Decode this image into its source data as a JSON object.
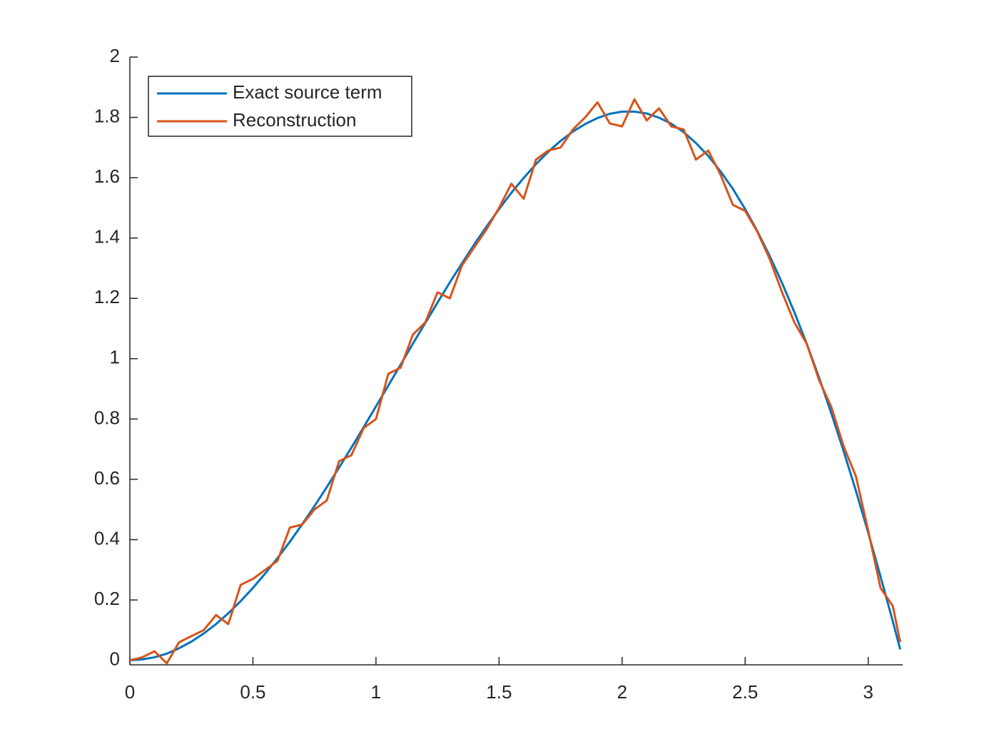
{
  "chart_data": {
    "type": "line",
    "x": [
      0,
      0.05,
      0.1,
      0.15,
      0.2,
      0.25,
      0.3,
      0.35,
      0.4,
      0.45,
      0.5,
      0.55,
      0.6,
      0.65,
      0.7,
      0.75,
      0.8,
      0.85,
      0.9,
      0.95,
      1.0,
      1.05,
      1.1,
      1.15,
      1.2,
      1.25,
      1.3,
      1.35,
      1.4,
      1.45,
      1.5,
      1.55,
      1.6,
      1.65,
      1.7,
      1.75,
      1.8,
      1.85,
      1.9,
      1.95,
      2.0,
      2.05,
      2.1,
      2.15,
      2.2,
      2.25,
      2.3,
      2.35,
      2.4,
      2.45,
      2.5,
      2.55,
      2.6,
      2.65,
      2.7,
      2.75,
      2.8,
      2.85,
      2.9,
      2.95,
      3.0,
      3.05,
      3.1,
      3.13
    ],
    "series": [
      {
        "name": "Exact source term",
        "color": "#0072bd",
        "values": [
          0,
          0.003,
          0.01,
          0.022,
          0.04,
          0.062,
          0.089,
          0.12,
          0.156,
          0.196,
          0.24,
          0.288,
          0.339,
          0.393,
          0.451,
          0.511,
          0.574,
          0.639,
          0.705,
          0.773,
          0.842,
          0.911,
          0.98,
          1.05,
          1.118,
          1.186,
          1.253,
          1.317,
          1.38,
          1.439,
          1.496,
          1.55,
          1.599,
          1.645,
          1.686,
          1.722,
          1.753,
          1.778,
          1.798,
          1.812,
          1.819,
          1.819,
          1.813,
          1.799,
          1.779,
          1.751,
          1.715,
          1.672,
          1.621,
          1.563,
          1.496,
          1.422,
          1.34,
          1.251,
          1.154,
          1.05,
          0.938,
          0.819,
          0.694,
          0.562,
          0.423,
          0.278,
          0.129,
          0.036
        ]
      },
      {
        "name": "Reconstruction",
        "color": "#d95319",
        "values": [
          0.0,
          0.01,
          0.03,
          -0.01,
          0.06,
          0.08,
          0.1,
          0.15,
          0.12,
          0.25,
          0.27,
          0.3,
          0.33,
          0.44,
          0.45,
          0.5,
          0.53,
          0.66,
          0.68,
          0.77,
          0.8,
          0.95,
          0.97,
          1.08,
          1.12,
          1.22,
          1.2,
          1.31,
          1.37,
          1.43,
          1.5,
          1.58,
          1.53,
          1.66,
          1.69,
          1.7,
          1.76,
          1.8,
          1.85,
          1.78,
          1.77,
          1.86,
          1.79,
          1.83,
          1.77,
          1.76,
          1.66,
          1.69,
          1.61,
          1.51,
          1.49,
          1.42,
          1.33,
          1.22,
          1.12,
          1.05,
          0.93,
          0.84,
          0.71,
          0.61,
          0.43,
          0.24,
          0.18,
          0.06
        ]
      }
    ],
    "xlim": [
      0,
      3.14
    ],
    "xticks": [
      0,
      0.5,
      1,
      1.5,
      2,
      2.5,
      3
    ],
    "ylim": [
      -0.015,
      2
    ],
    "yticks": [
      0,
      0.2,
      0.4,
      0.6,
      0.8,
      1,
      1.2,
      1.4,
      1.6,
      1.8,
      2
    ],
    "legend": "upper left"
  }
}
